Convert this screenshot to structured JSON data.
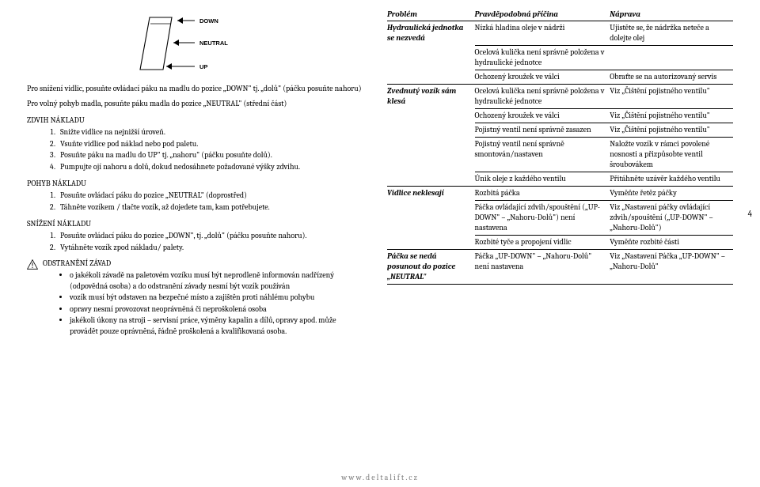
{
  "diagram": {
    "labels": {
      "down": "DOWN",
      "neutral": "NEUTRAL",
      "up": "UP"
    },
    "arrow_fill": "#000000",
    "line_color": "#000000"
  },
  "left": {
    "para1": "Pro snížení vidlic, posuňte ovládací páku na madlu do pozice „DOWN\" tj. „dolů\" (páčku posuňte nahoru)",
    "para2": "Pro volný pohyb madla, posuňte páku madla do pozice „NEUTRAL\" (střední část)",
    "zdvih_head": "ZDVIH NÁKLADU",
    "zdvih_items": [
      "Snižte vidlice na nejnižší úroveň.",
      "Vsuňte vidlice pod náklad nebo pod paletu.",
      "Posuňte páku na madlu do UP\" tj. „nahoru\" (páčku posuňte dolů).",
      "Pumpujte ojí nahoru a dolů, dokud nedosáhnete požadované výšky zdvihu."
    ],
    "pohyb_head": "POHYB NÁKLADU",
    "pohyb_items": [
      "Posuňte ovládací páku do pozice „NEUTRAL\" (doprostřed)",
      "Táhněte vozíkem / tlačte vozík, až dojedete tam, kam potřebujete."
    ],
    "snizeni_head": "SNÍŽENÍ NÁKLADU",
    "snizeni_items": [
      "Posuňte ovládací páku do pozice „DOWN\", tj. „dolů\" (páčku posuňte nahoru).",
      "Vytáhněte vozík zpod nákladu/ palety."
    ],
    "odstran_head": "ODSTRANĚNÍ ZÁVAD",
    "odstran_items": [
      "o jakékoli závadě na paletovém vozíku musí být neprodleně informován nadřízený (odpovědná osoba) a do odstranění závady nesmí být vozík používán",
      "vozík musí být odstaven na bezpečné místo a zajištěn proti náhlému pohybu",
      "opravy nesmí provozovat neoprávněná či neproškolená osoba",
      "jakékoli úkony na stroji – servisní práce, výměny kapalin a dílů, opravy apod. může provádět pouze oprávněná, řádně proškolená a kvalifikovaná osoba."
    ]
  },
  "table": {
    "head": {
      "problem": "Problém",
      "cause": "Pravděpodobná příčina",
      "remedy": "Náprava"
    },
    "rows": [
      {
        "problem": "Hydraulická jednotka se nezvedá",
        "cause": "Nízká hladina oleje v nádrži",
        "remedy": "Ujistěte se, že nádržka neteče a dolejte olej",
        "rowspan": 3
      },
      {
        "cause": "Ocelová kulička není správně položena v hydraulické jednotce",
        "remedy": ""
      },
      {
        "cause": "Ochozený kroužek ve válci",
        "remedy": "Obraťte se na autorizovaný servis"
      },
      {
        "problem": "Zvednutý vozík sám klesá",
        "cause": "Ocelová kulička není správně položena v hydraulické jednotce",
        "remedy": "Viz „Čištění pojistného ventilu\"",
        "rowspan": 5
      },
      {
        "cause": "Ochozený kroužek ve válci",
        "remedy": "Viz „Čištění pojistného ventilu\""
      },
      {
        "cause": "Pojistný ventil není správně zasazen",
        "remedy": "Viz „Čištění pojistného ventilu\""
      },
      {
        "cause": "Pojistný ventil není správně smontován/nastaven",
        "remedy": "Naložte vozík v rámci povolené nosnosti a přizpůsobte ventil šroubovákem"
      },
      {
        "cause": "Únik oleje z každého ventilu",
        "remedy": "Přitáhněte uzávěr každého ventilu"
      },
      {
        "problem": "Vidlice neklesají",
        "cause": "Rozbitá páčka",
        "remedy": "Vyměňte řetěz páčky",
        "rowspan": 3
      },
      {
        "cause": "Páčka ovládající zdvih/spouštění („UP-DOWN\" – „Nahoru-Dolů\") není nastavena",
        "remedy": "Viz „Nastavení páčky ovládající zdvih/spouštění  („UP-DOWN\" – „Nahoru-Dolů\")"
      },
      {
        "cause": "Rozbité tyče a propojení vidlic",
        "remedy": "Vyměňte rozbité části"
      },
      {
        "problem": "Páčka se nedá posunout do pozice „NEUTRAL\"",
        "cause": "Páčka „UP-DOWN\" – „Nahoru-Dolů\" není nastavena",
        "remedy": "Viz „Nastavení Páčka „UP-DOWN\" – „Nahoru-Dolů\"",
        "rowspan": 1
      }
    ]
  },
  "footer": "www.deltalift.cz",
  "page_number": "4"
}
